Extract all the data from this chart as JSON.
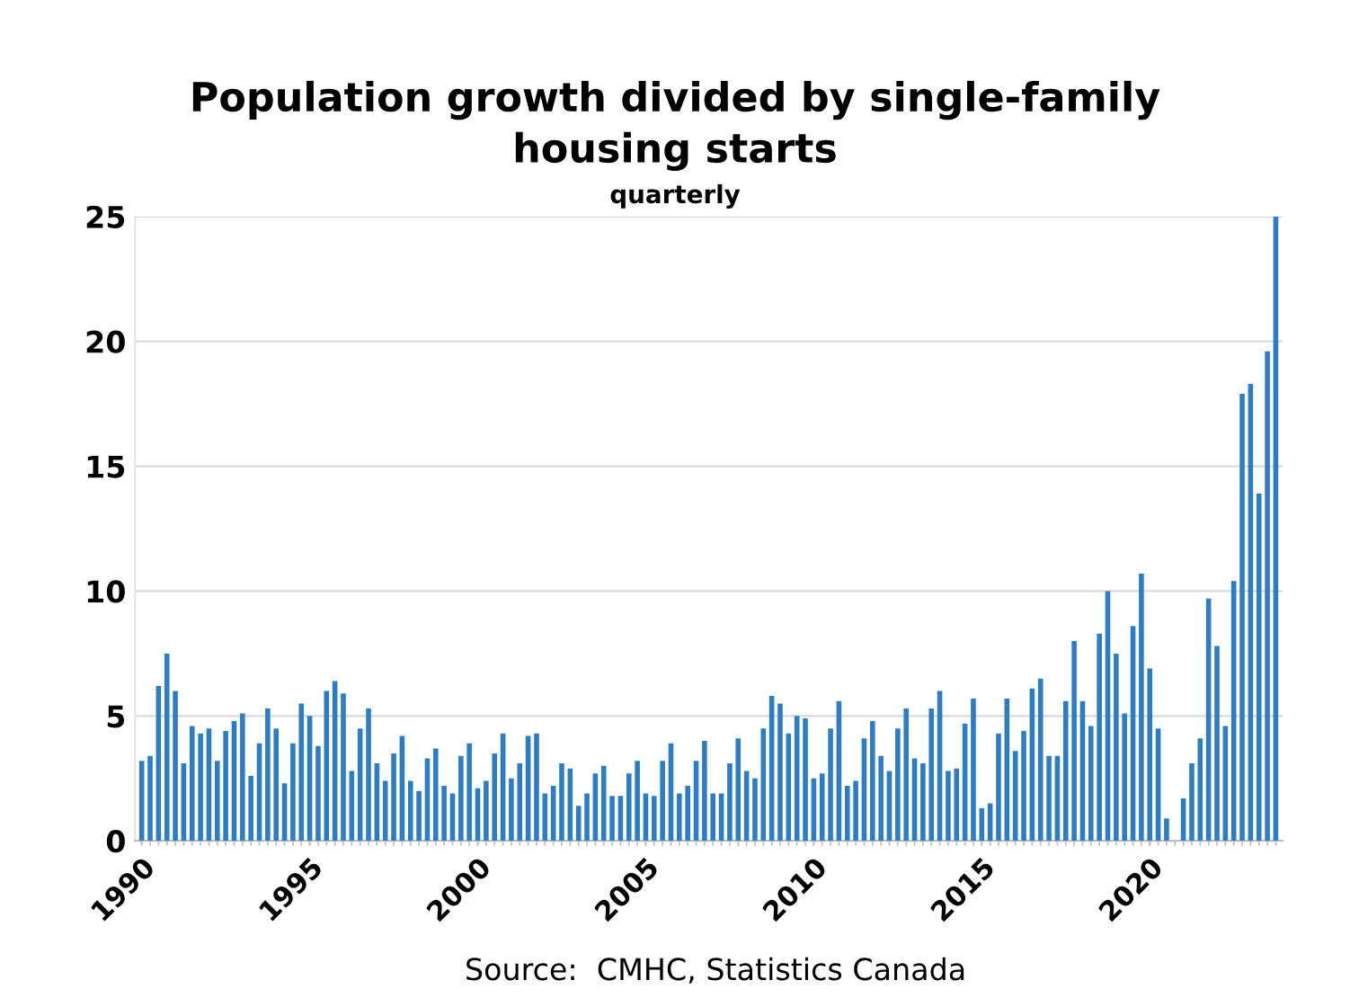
{
  "chart_data": {
    "type": "bar",
    "title": "Population growth divided by single-family\nhousing starts",
    "subtitle": "quarterly",
    "categories": [
      "1990",
      null,
      null,
      null,
      null,
      null,
      null,
      null,
      null,
      null,
      null,
      null,
      null,
      null,
      null,
      null,
      null,
      null,
      null,
      null,
      "1995",
      null,
      null,
      null,
      null,
      null,
      null,
      null,
      null,
      null,
      null,
      null,
      null,
      null,
      null,
      null,
      null,
      null,
      null,
      null,
      "2000",
      null,
      null,
      null,
      null,
      null,
      null,
      null,
      null,
      null,
      null,
      null,
      null,
      null,
      null,
      null,
      null,
      null,
      null,
      null,
      "2005",
      null,
      null,
      null,
      null,
      null,
      null,
      null,
      null,
      null,
      null,
      null,
      null,
      null,
      null,
      null,
      null,
      null,
      null,
      null,
      "2010",
      null,
      null,
      null,
      null,
      null,
      null,
      null,
      null,
      null,
      null,
      null,
      null,
      null,
      null,
      null,
      null,
      null,
      null,
      null,
      "2015",
      null,
      null,
      null,
      null,
      null,
      null,
      null,
      null,
      null,
      null,
      null,
      null,
      null,
      null,
      null,
      null,
      null,
      null,
      null,
      "2020",
      null,
      null,
      null,
      null,
      null,
      null,
      null,
      null,
      null,
      null,
      null,
      null,
      null,
      null,
      null
    ],
    "values": [
      3.2,
      3.4,
      6.2,
      7.5,
      6.0,
      3.1,
      4.6,
      4.3,
      4.5,
      3.2,
      4.4,
      4.8,
      5.1,
      2.6,
      3.9,
      5.3,
      4.5,
      2.3,
      3.9,
      5.5,
      5.0,
      3.8,
      6.0,
      6.4,
      5.9,
      2.8,
      4.5,
      5.3,
      3.1,
      2.4,
      3.5,
      4.2,
      2.4,
      2.0,
      3.3,
      3.7,
      2.2,
      1.9,
      3.4,
      3.9,
      2.1,
      2.4,
      3.5,
      4.3,
      2.5,
      3.1,
      4.2,
      4.3,
      1.9,
      2.2,
      3.1,
      2.9,
      1.4,
      1.9,
      2.7,
      3.0,
      1.8,
      1.8,
      2.7,
      3.2,
      1.9,
      1.8,
      3.2,
      3.9,
      1.9,
      2.2,
      3.2,
      4.0,
      1.9,
      1.9,
      3.1,
      4.1,
      2.8,
      2.5,
      4.5,
      5.8,
      5.5,
      4.3,
      5.0,
      4.9,
      2.5,
      2.7,
      4.5,
      5.6,
      2.2,
      2.4,
      4.1,
      4.8,
      3.4,
      2.8,
      4.5,
      5.3,
      3.3,
      3.1,
      5.3,
      6.0,
      2.8,
      2.9,
      4.7,
      5.7,
      1.3,
      1.5,
      4.3,
      5.7,
      3.6,
      4.4,
      6.1,
      6.5,
      3.4,
      3.4,
      5.6,
      8.0,
      5.6,
      4.6,
      8.3,
      10.0,
      7.5,
      5.1,
      8.6,
      10.7,
      6.9,
      4.5,
      0.9,
      0,
      1.7,
      3.1,
      4.1,
      9.7,
      7.8,
      4.6,
      10.4,
      17.9,
      18.3,
      13.9,
      19.6,
      25.0
    ],
    "color": "#2e7dc4",
    "ylim": [
      0,
      25
    ],
    "yticks": [
      0,
      5,
      10,
      15,
      20,
      25
    ],
    "grid": "y",
    "annotations": [
      "Source:  CMHC, Statistics Canada"
    ]
  }
}
